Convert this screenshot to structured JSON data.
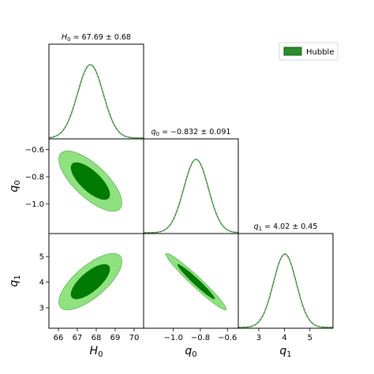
{
  "chart_data": {
    "type": "corner",
    "legend": {
      "entries": [
        {
          "label": "Hubble",
          "color": "#2e8b2e",
          "edge": "#006400"
        }
      ],
      "placement": "top-right"
    },
    "colors": {
      "inner": "#007a00",
      "outer": "#90e280",
      "outer_edge": "#5cb85c",
      "curve": "#5cb85c",
      "curve_dash": "#444444"
    },
    "parameters": [
      {
        "label": "H",
        "sub": "0",
        "mean": 67.69,
        "sigma": 0.68,
        "range": [
          65.5,
          70.5
        ],
        "ticks": [
          66,
          67,
          68,
          69,
          70
        ],
        "title": {
          "pre": "H",
          "sub": "0",
          "post": " = 67.69 ± 0.68"
        }
      },
      {
        "label": "q",
        "sub": "0",
        "mean": -0.832,
        "sigma": 0.091,
        "range": [
          -1.22,
          -0.52
        ],
        "ticks": [
          -1.0,
          -0.8,
          -0.6
        ],
        "tick_labels": [
          "−1.0",
          "−0.8",
          "−0.6"
        ],
        "title": {
          "pre": "q",
          "sub": "0",
          "post": " = −0.832 ± 0.091"
        }
      },
      {
        "label": "q",
        "sub": "1",
        "mean": 4.02,
        "sigma": 0.45,
        "range": [
          2.2,
          5.9
        ],
        "ticks": [
          3,
          4,
          5
        ],
        "title": {
          "pre": "q",
          "sub": "1",
          "post": " = 4.02 ± 0.45"
        }
      }
    ],
    "correlations": {
      "q0_H0": -0.72,
      "q1_H0": 0.72,
      "q1_q0": -0.97
    }
  }
}
